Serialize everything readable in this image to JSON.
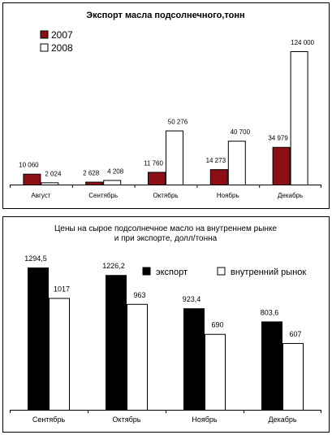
{
  "chart_data": [
    {
      "type": "bar",
      "title": "Экспорт масла подсолнечного,тонн",
      "categories": [
        "Август",
        "Сентябрь",
        "Октябрь",
        "Ноябрь",
        "Декабрь"
      ],
      "series": [
        {
          "name": "2007",
          "values": [
            10060,
            2628,
            11760,
            14273,
            34979
          ],
          "labels": [
            "10 060",
            "2 628",
            "11 760",
            "14 273",
            "34 979"
          ]
        },
        {
          "name": "2008",
          "values": [
            2024,
            4208,
            50276,
            40700,
            124000
          ],
          "labels": [
            "2 024",
            "4 208",
            "50 276",
            "40 700",
            "124 000"
          ]
        }
      ],
      "ylim": [
        0,
        124000
      ],
      "legend": "top-left",
      "colors": {
        "2007": "#8b0f14",
        "2008": "#ffffff"
      }
    },
    {
      "type": "bar",
      "title": "Цены на сырое подсолнечное масло на внутреннем рынке и при экспорте, долл/тонна",
      "title_lines": [
        "Цены на сырое подсолнечное масло на внутреннем рынке",
        "и при экспорте, долл/тонна"
      ],
      "categories": [
        "Сентябрь",
        "Октябрь",
        "Ноябрь",
        "Декабрь"
      ],
      "series": [
        {
          "name": "экспорт",
          "values": [
            1294.5,
            1226.2,
            923.4,
            803.6
          ],
          "labels": [
            "1294,5",
            "1226,2",
            "923,4",
            "803,6"
          ]
        },
        {
          "name": "внутренний рынок",
          "values": [
            1017,
            963,
            690,
            607
          ],
          "labels": [
            "1017",
            "963",
            "690",
            "607"
          ]
        }
      ],
      "ylim": [
        0,
        1294.5
      ],
      "legend": "top-right",
      "colors": {
        "экспорт": "#000000",
        "внутренний рынок": "#ffffff"
      }
    }
  ]
}
